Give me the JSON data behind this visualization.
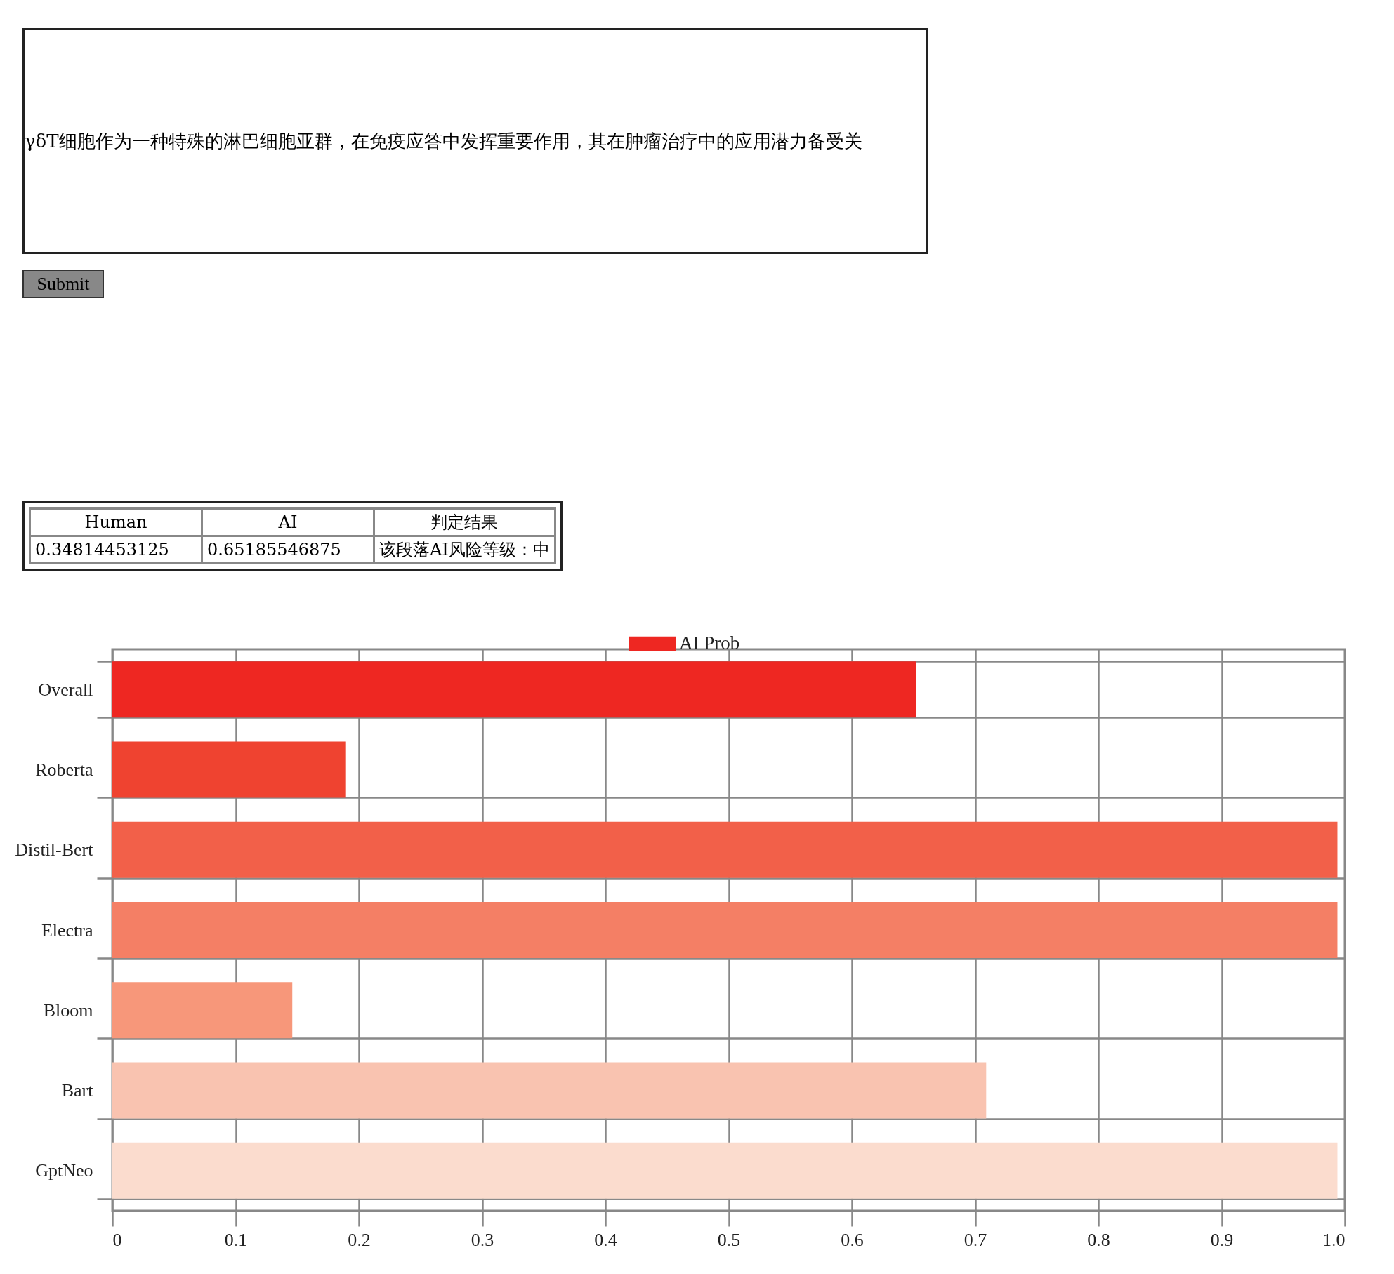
{
  "chart_data": {
    "type": "bar",
    "orientation": "horizontal",
    "categories": [
      "Overall",
      "Roberta",
      "Distil-Bert",
      "Electra",
      "Bloom",
      "Bart",
      "GptNeo"
    ],
    "series": [
      {
        "name": "AI Prob",
        "values": [
          0.652,
          0.189,
          0.994,
          0.994,
          0.146,
          0.709,
          0.994
        ]
      }
    ],
    "colors": [
      "#ee2722",
      "#ef4330",
      "#f26049",
      "#f47f65",
      "#f7977a",
      "#f9c3b0",
      "#fbdcce"
    ],
    "xlim": [
      0,
      1
    ],
    "xticks": [
      0,
      0.1,
      0.2,
      0.3,
      0.4,
      0.5,
      0.6,
      0.7,
      0.8,
      0.9,
      {
        "value": 1,
        "label": "1.0"
      }
    ],
    "grid": true,
    "legend": "top",
    "annotations": [
      "γδT细胞作为一种特殊的淋巴细胞亚群，在免疫应答中发挥重要作用，其在肿瘤治疗中的应用潜力备受关",
      "Submit",
      "Human",
      "AI",
      "判定结果",
      "0.34814453125",
      "0.65185546875",
      "该段落AI风险等级：中"
    ]
  }
}
